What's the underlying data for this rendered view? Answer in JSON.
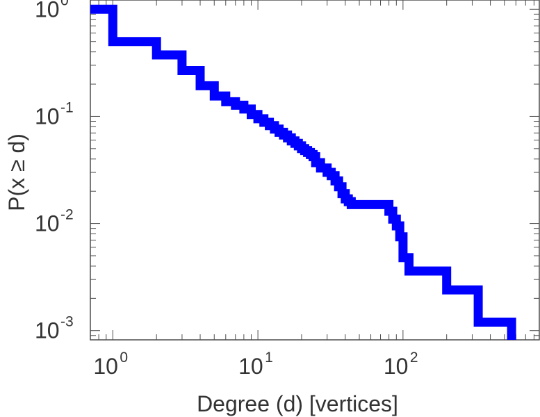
{
  "chart_data": {
    "type": "line",
    "step": true,
    "xlabel": "Degree (d) [vertices]",
    "ylabel": "P(x ≥ d)",
    "xscale": "log",
    "yscale": "log",
    "xlim": [
      0.7,
      870
    ],
    "ylim": [
      0.00082,
      1.22
    ],
    "grid": false,
    "x_ticks": [
      {
        "base": "10",
        "exp": "0",
        "value": 1
      },
      {
        "base": "10",
        "exp": "1",
        "value": 10
      },
      {
        "base": "10",
        "exp": "2",
        "value": 100
      }
    ],
    "y_ticks": [
      {
        "base": "10",
        "exp": "0",
        "value": 1
      },
      {
        "base": "10",
        "exp": "-1",
        "value": 0.1
      },
      {
        "base": "10",
        "exp": "-2",
        "value": 0.01
      },
      {
        "base": "10",
        "exp": "-3",
        "value": 0.001
      }
    ],
    "series": [
      {
        "color": "#0000ff",
        "x": [
          0.7,
          1,
          2,
          3,
          4,
          5,
          6,
          7,
          8,
          9,
          10,
          11,
          12,
          13,
          14,
          15,
          16,
          17,
          18,
          19,
          20,
          21,
          22,
          23,
          24,
          25,
          27,
          30,
          32,
          34,
          36,
          38,
          40,
          42,
          44,
          50,
          60,
          70,
          80,
          85,
          90,
          95,
          100,
          110,
          200,
          330,
          560
        ],
        "y": [
          1,
          0.5,
          0.375,
          0.268,
          0.193,
          0.155,
          0.137,
          0.127,
          0.117,
          0.104,
          0.095,
          0.088,
          0.082,
          0.076,
          0.071,
          0.067,
          0.063,
          0.059,
          0.056,
          0.053,
          0.05,
          0.048,
          0.046,
          0.044,
          0.042,
          0.037,
          0.033,
          0.03,
          0.028,
          0.025,
          0.022,
          0.019,
          0.017,
          0.016,
          0.015,
          0.015,
          0.015,
          0.015,
          0.013,
          0.011,
          0.0095,
          0.0075,
          0.0048,
          0.0036,
          0.0024,
          0.0012,
          0.0008
        ]
      }
    ]
  }
}
